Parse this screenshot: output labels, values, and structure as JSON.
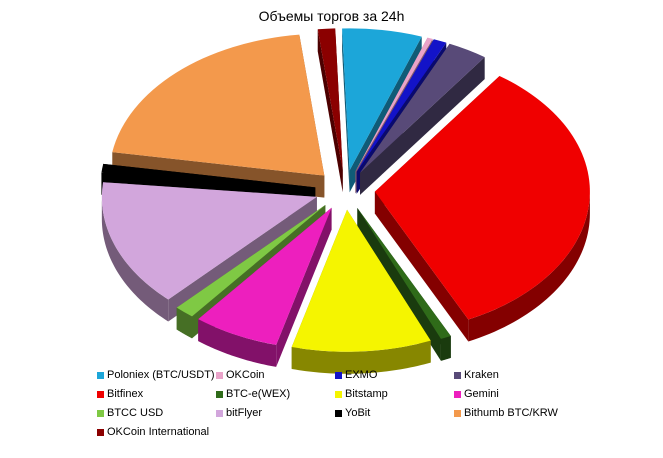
{
  "chart_data": {
    "type": "pie",
    "title": "Объемы торгов за 24h",
    "legend_position": "bottom",
    "series": [
      {
        "name": "Poloniex (BTC/USDT)",
        "value": 6.0,
        "color": "#1ca6d9"
      },
      {
        "name": "OKCoin",
        "value": 0.4,
        "color": "#e9a3c9"
      },
      {
        "name": "EXMO",
        "value": 1.0,
        "color": "#1313c8"
      },
      {
        "name": "Kraken",
        "value": 3.0,
        "color": "#584a78"
      },
      {
        "name": "Bitfinex",
        "value": 33.0,
        "color": "#f00000"
      },
      {
        "name": "BTC-e(WEX)",
        "value": 0.8,
        "color": "#2f6b19"
      },
      {
        "name": "Bitstamp",
        "value": 10.5,
        "color": "#f5f500"
      },
      {
        "name": "Gemini",
        "value": 6.5,
        "color": "#ed1fbe"
      },
      {
        "name": "BTCC USD",
        "value": 1.5,
        "color": "#7fc944"
      },
      {
        "name": "bitFlyer",
        "value": 14.5,
        "color": "#d2a6dc"
      },
      {
        "name": "YoBit",
        "value": 1.0,
        "color": "#000000"
      },
      {
        "name": "Bithumb BTC/KRW",
        "value": 20.5,
        "color": "#f3994c"
      },
      {
        "name": "OKCoin  International",
        "value": 1.3,
        "color": "#8b0000"
      }
    ]
  }
}
